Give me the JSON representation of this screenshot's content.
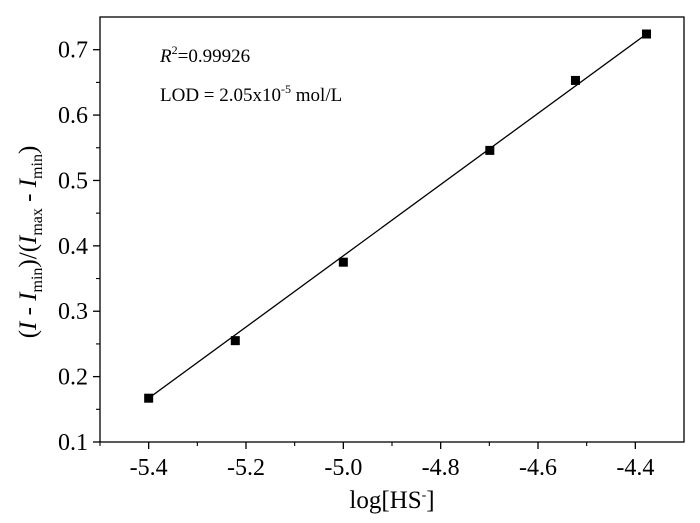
{
  "chart_data": {
    "type": "scatter",
    "title": "",
    "xlabel": {
      "base": "log[HS",
      "superscript": "-",
      "suffix": "]"
    },
    "ylabel": {
      "open_paren": "(",
      "I1": "I",
      "minus1": " - ",
      "I2": "I",
      "sub_min1": "min",
      "mid": ")/(",
      "I3": "I",
      "sub_max": "max",
      "minus2": " - ",
      "I4": "I",
      "sub_min2": "min",
      "close_paren": ")"
    },
    "xlim": [
      -5.5,
      -4.3
    ],
    "ylim": [
      0.1,
      0.75
    ],
    "xticks": [
      -5.4,
      -5.2,
      -5.0,
      -4.8,
      -4.6,
      -4.4
    ],
    "xtick_labels": [
      "-5.4",
      "-5.2",
      "-5.0",
      "-4.8",
      "-4.6",
      "-4.4"
    ],
    "yticks": [
      0.1,
      0.2,
      0.3,
      0.4,
      0.5,
      0.6,
      0.7
    ],
    "ytick_labels": [
      "0.1",
      "0.2",
      "0.3",
      "0.4",
      "0.5",
      "0.6",
      "0.7"
    ],
    "series": [
      {
        "marker": "square",
        "color": "#000000",
        "x": [
          -5.4,
          -5.222,
          -5.0,
          -4.699,
          -4.523,
          -4.377
        ],
        "y": [
          0.167,
          0.255,
          0.375,
          0.546,
          0.653,
          0.724
        ]
      }
    ],
    "fit_line": {
      "x": [
        -5.4,
        -4.377
      ],
      "y": [
        0.167,
        0.724
      ],
      "color": "#000000"
    },
    "annotations": {
      "r2_label": "R",
      "r2_sup": "2",
      "r2_value": "=0.99926",
      "lod_text": "LOD = 2.05x10",
      "lod_sup": "-5",
      "lod_unit": " mol/L"
    },
    "grid": false,
    "legend": false
  }
}
